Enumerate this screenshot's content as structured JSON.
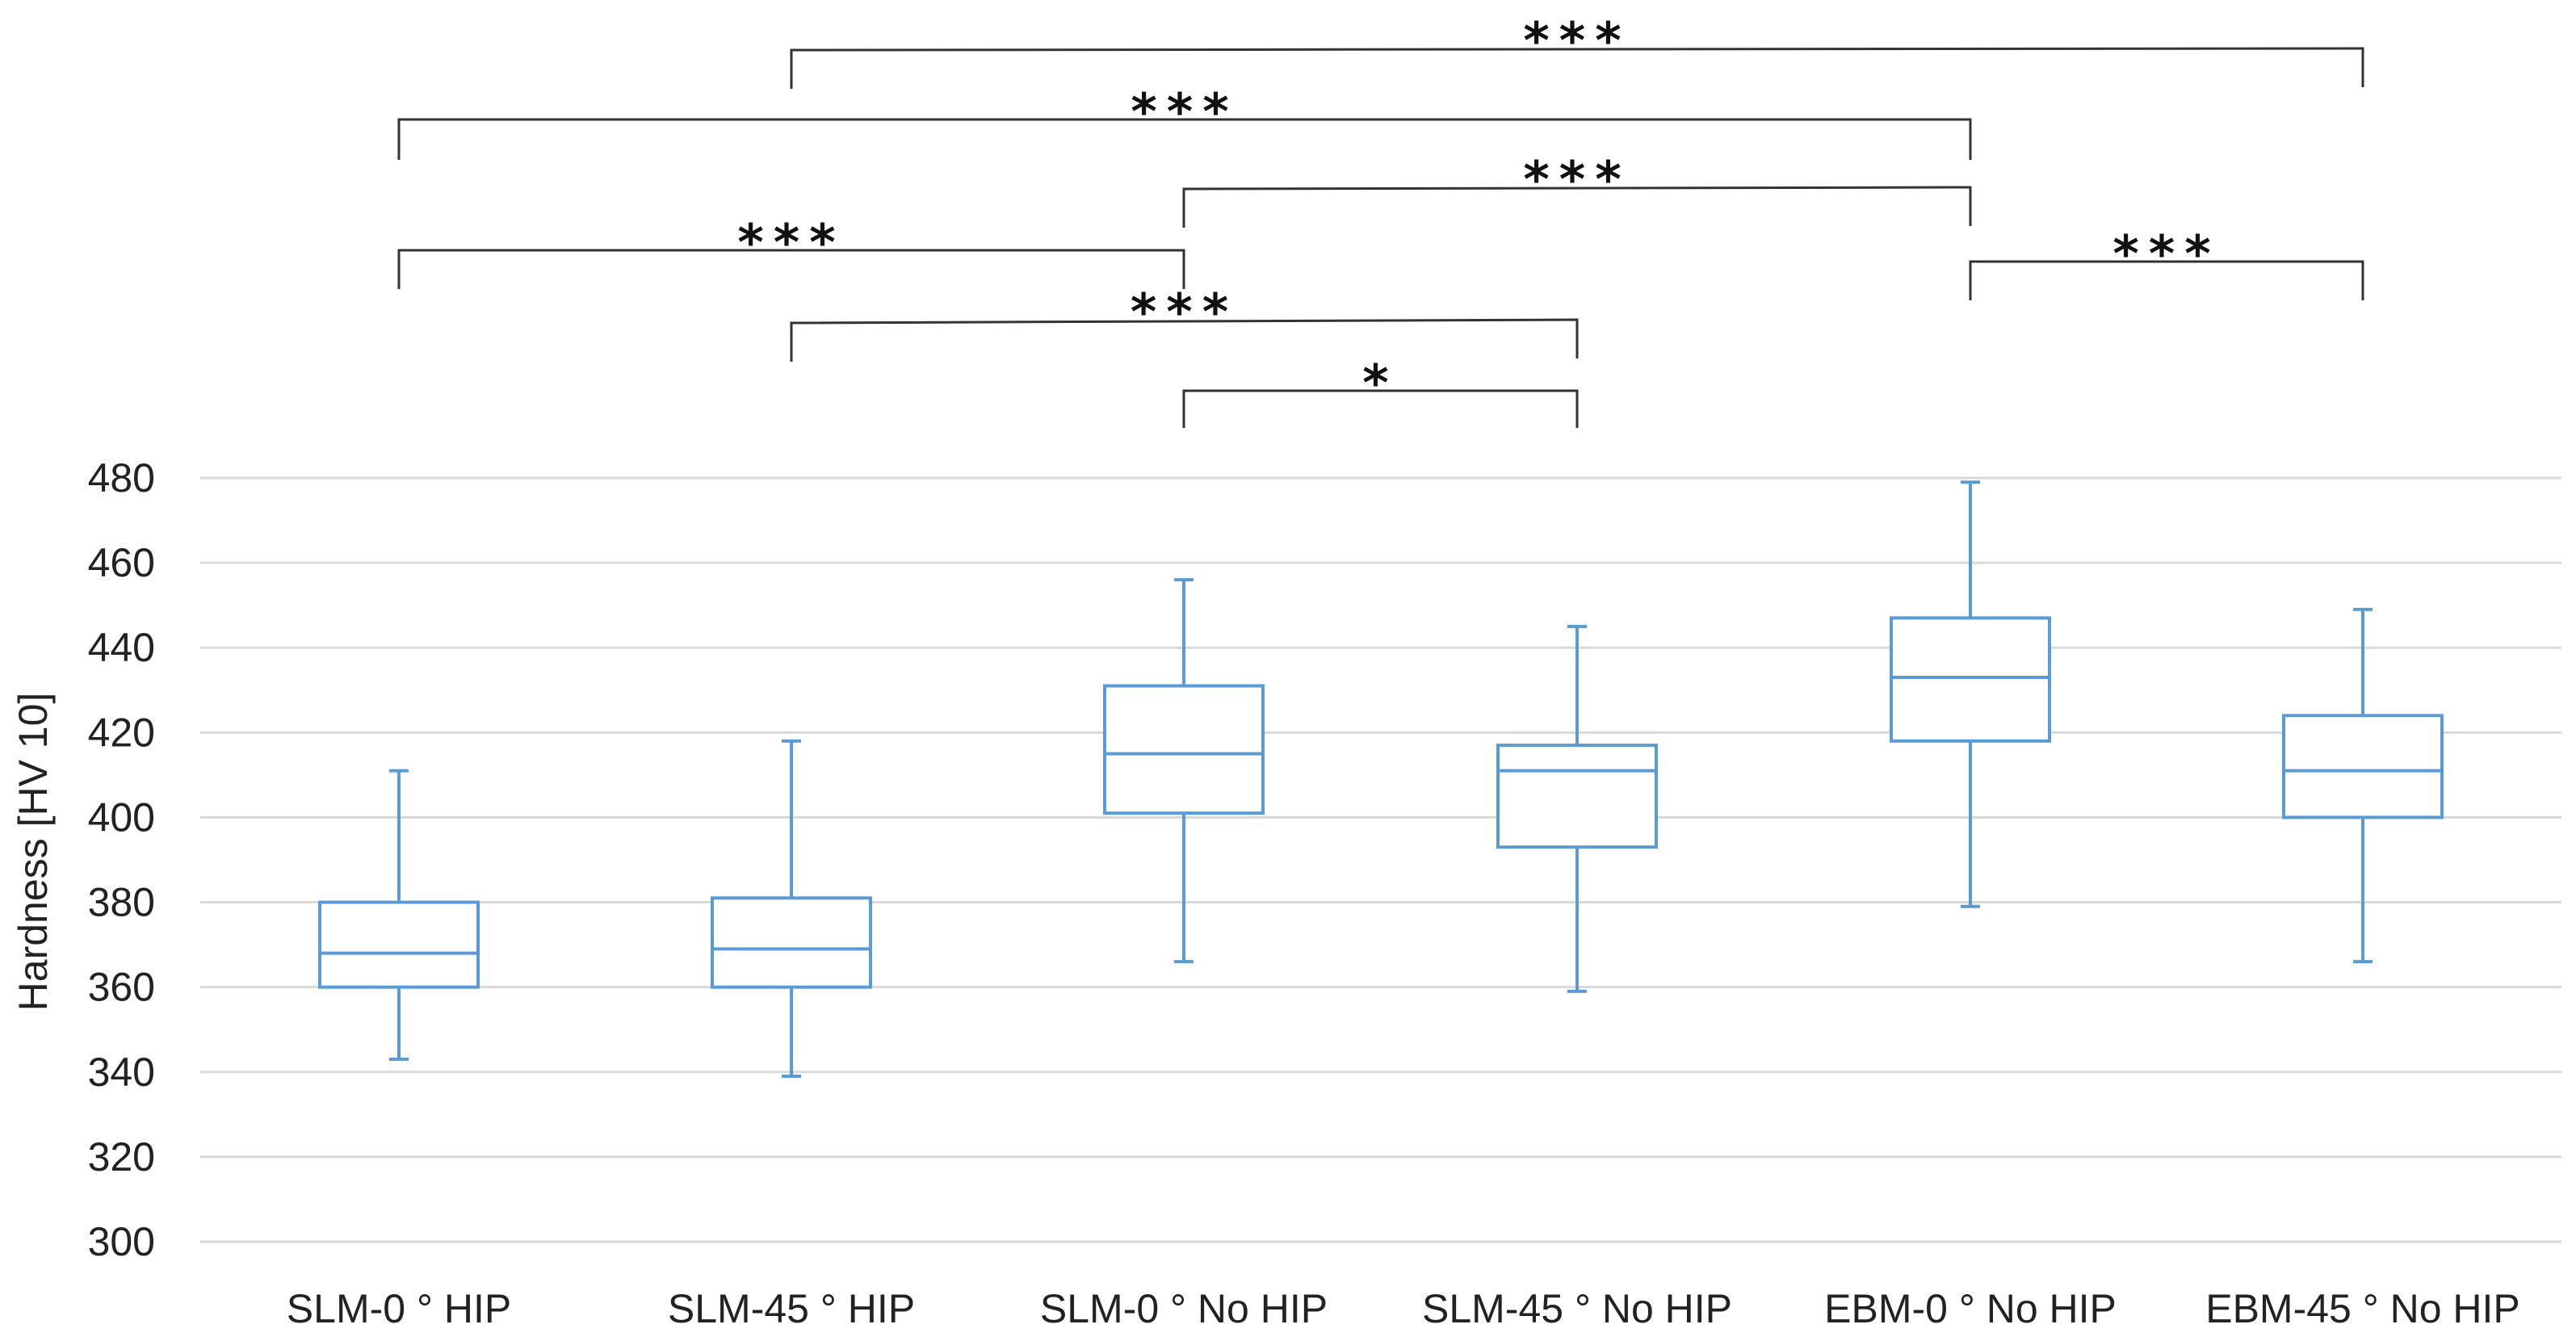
{
  "colors": {
    "box": "#5b9bd5",
    "grid": "#d9d9d9",
    "bracket": "#333333",
    "text": "#222222"
  },
  "chart_data": {
    "type": "boxplot",
    "title": "",
    "xlabel": "",
    "ylabel": "Hardness [HV 10]",
    "ylim": [
      300,
      480
    ],
    "yticks": [
      300,
      320,
      340,
      360,
      380,
      400,
      420,
      440,
      460,
      480
    ],
    "grid": true,
    "categories": [
      "SLM-0 ° HIP",
      "SLM-45 ° HIP",
      "SLM-0 ° No HIP",
      "SLM-45 ° No HIP",
      "EBM-0 ° No HIP",
      "EBM-45 ° No HIP"
    ],
    "boxes": [
      {
        "min": 343,
        "q1": 360,
        "median": 368,
        "q3": 380,
        "max": 411
      },
      {
        "min": 339,
        "q1": 360,
        "median": 369,
        "q3": 381,
        "max": 418
      },
      {
        "min": 366,
        "q1": 401,
        "median": 415,
        "q3": 431,
        "max": 456
      },
      {
        "min": 359,
        "q1": 393,
        "median": 411,
        "q3": 417,
        "max": 445
      },
      {
        "min": 379,
        "q1": 418,
        "median": 433,
        "q3": 447,
        "max": 479
      },
      {
        "min": 366,
        "q1": 400,
        "median": 411,
        "q3": 424,
        "max": 449
      }
    ],
    "significance": [
      {
        "from": 1,
        "to": 5,
        "label": "***"
      },
      {
        "from": 0,
        "to": 4,
        "label": "***"
      },
      {
        "from": 2,
        "to": 4,
        "label": "***"
      },
      {
        "from": 0,
        "to": 2,
        "label": "***"
      },
      {
        "from": 4,
        "to": 5,
        "label": "***"
      },
      {
        "from": 1,
        "to": 3,
        "label": "***"
      },
      {
        "from": 2,
        "to": 3,
        "label": "*"
      }
    ]
  }
}
